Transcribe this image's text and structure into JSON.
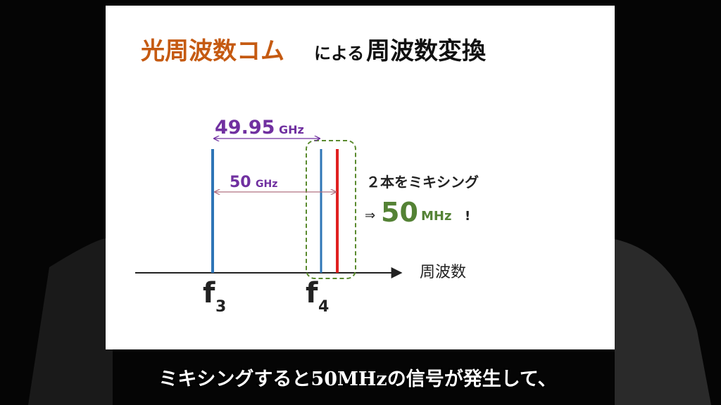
{
  "slide": {
    "title": {
      "part1": "光周波数コム",
      "part2": "による",
      "part3": "周波数変換"
    },
    "span_wide": {
      "number": "49.95",
      "unit": "GHz"
    },
    "span_narrow": {
      "number": "50",
      "unit": "GHz"
    },
    "note": {
      "line1": "２本をミキシング",
      "arrow": "⇒",
      "number": "50",
      "unit": "MHz",
      "mark": "!"
    },
    "axis_label": "周波数",
    "f3": {
      "symbol": "f",
      "index": "3"
    },
    "f4": {
      "symbol": "f",
      "index": "4"
    }
  },
  "subtitle": "ミキシングすると50MHzの信号が発生して、"
}
